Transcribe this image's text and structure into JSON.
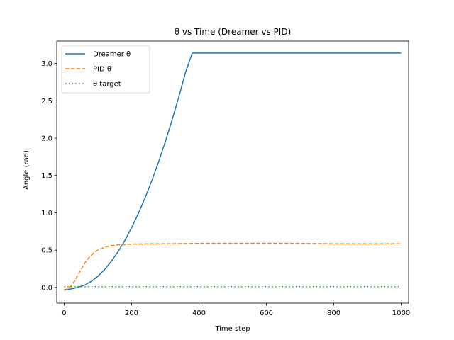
{
  "chart_data": {
    "type": "line",
    "title": "θ vs Time (Dreamer vs PID)",
    "xlabel": "Time step",
    "ylabel": "Angle (rad)",
    "xlim": [
      -22,
      1022
    ],
    "ylim": [
      -0.21,
      3.3
    ],
    "xticks": [
      0,
      200,
      400,
      600,
      800,
      1000
    ],
    "yticks": [
      0.0,
      0.5,
      1.0,
      1.5,
      2.0,
      2.5,
      3.0
    ],
    "xtick_labels": [
      "0",
      "200",
      "400",
      "600",
      "800",
      "1000"
    ],
    "ytick_labels": [
      "0.0",
      "0.5",
      "1.0",
      "1.5",
      "2.0",
      "2.5",
      "3.0"
    ],
    "grid": false,
    "legend_position": "top-left",
    "series": [
      {
        "name": "Dreamer θ",
        "color": "#1f77b4",
        "style": "solid",
        "x": [
          0,
          20,
          40,
          60,
          80,
          100,
          120,
          140,
          160,
          180,
          200,
          220,
          240,
          260,
          280,
          300,
          320,
          340,
          360,
          380,
          1000
        ],
        "y": [
          -0.03,
          -0.02,
          0.0,
          0.03,
          0.08,
          0.15,
          0.24,
          0.35,
          0.48,
          0.63,
          0.8,
          0.99,
          1.2,
          1.43,
          1.68,
          1.95,
          2.24,
          2.55,
          2.88,
          3.14,
          3.14
        ]
      },
      {
        "name": "PID θ",
        "color": "#ff7f0e",
        "style": "dashed",
        "x": [
          0,
          10,
          20,
          30,
          40,
          50,
          60,
          70,
          80,
          90,
          100,
          120,
          140,
          160,
          180,
          200,
          250,
          300,
          400,
          500,
          600,
          700,
          800,
          900,
          1000
        ],
        "y": [
          -0.04,
          -0.02,
          0.02,
          0.08,
          0.16,
          0.24,
          0.32,
          0.38,
          0.43,
          0.47,
          0.5,
          0.54,
          0.56,
          0.57,
          0.575,
          0.58,
          0.585,
          0.585,
          0.59,
          0.59,
          0.59,
          0.59,
          0.585,
          0.585,
          0.585
        ]
      },
      {
        "name": "θ target",
        "color": "#2ca02c",
        "style": "dotted",
        "x": [
          0,
          1000
        ],
        "y": [
          0.01,
          0.01
        ]
      }
    ]
  }
}
